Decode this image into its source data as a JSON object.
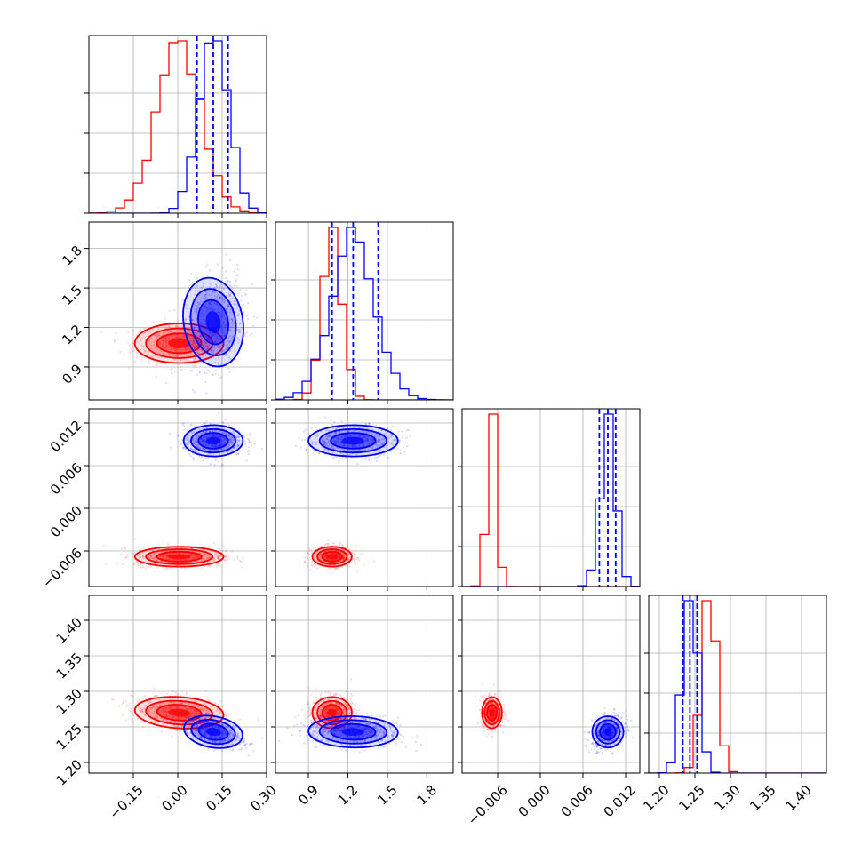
{
  "chart_data": {
    "type": "corner",
    "parameters": [
      {
        "range": [
          -0.3,
          0.3
        ],
        "ticks": [
          -0.15,
          0.0,
          0.15,
          0.3
        ],
        "tick_labels": [
          "−0.15",
          "0.00",
          "0.15",
          "0.30"
        ]
      },
      {
        "range": [
          0.65,
          2.0
        ],
        "ticks": [
          0.9,
          1.2,
          1.5,
          1.8
        ],
        "tick_labels": [
          "0.9",
          "1.2",
          "1.5",
          "1.8"
        ]
      },
      {
        "range": [
          -0.011,
          0.014
        ],
        "ticks": [
          -0.006,
          0.0,
          0.006,
          0.012
        ],
        "tick_labels": [
          "−0.006",
          "0.000",
          "0.006",
          "0.012"
        ]
      },
      {
        "range": [
          1.185,
          1.435
        ],
        "ticks": [
          1.2,
          1.25,
          1.3,
          1.35,
          1.4
        ],
        "tick_labels": [
          "1.20",
          "1.25",
          "1.30",
          "1.35",
          "1.40"
        ]
      }
    ],
    "series": [
      {
        "color": "#ff0000",
        "means": [
          0.005,
          1.08,
          -0.0068,
          1.27
        ],
        "sigmas": [
          0.075,
          0.075,
          0.0007,
          0.011
        ],
        "correlations": {
          "0-3": -0.3,
          "1-3": 0.0
        }
      },
      {
        "color": "#0000ff",
        "means": [
          0.12,
          1.24,
          0.0095,
          1.243
        ],
        "sigmas": [
          0.05,
          0.17,
          0.0011,
          0.011
        ],
        "correlations": {
          "0-1": 0.2,
          "0-3": -0.55,
          "1-3": -0.1,
          "2-3": 0.3
        }
      }
    ],
    "quantiles": [
      {
        "param": 0,
        "color": "#0000ff",
        "values": [
          0.065,
          0.12,
          0.17
        ]
      },
      {
        "param": 1,
        "color": "#0000ff",
        "values": [
          1.08,
          1.24,
          1.43
        ]
      },
      {
        "param": 2,
        "color": "#0000ff",
        "values": [
          0.0083,
          0.0095,
          0.0106
        ]
      },
      {
        "param": 3,
        "color": "#0000ff",
        "values": [
          1.233,
          1.243,
          1.253
        ]
      }
    ],
    "grid": true,
    "legend": "none"
  }
}
